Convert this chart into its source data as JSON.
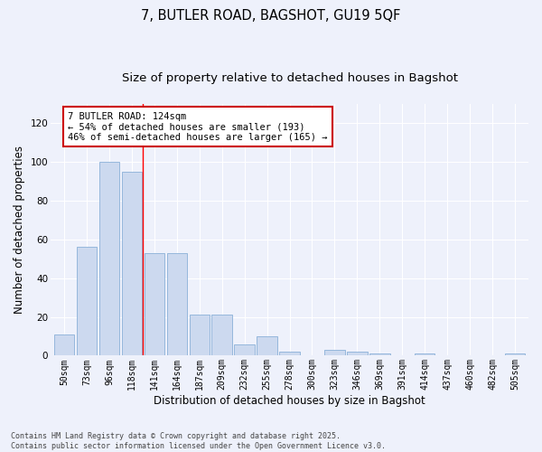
{
  "title": "7, BUTLER ROAD, BAGSHOT, GU19 5QF",
  "subtitle": "Size of property relative to detached houses in Bagshot",
  "xlabel": "Distribution of detached houses by size in Bagshot",
  "ylabel": "Number of detached properties",
  "categories": [
    "50sqm",
    "73sqm",
    "96sqm",
    "118sqm",
    "141sqm",
    "164sqm",
    "187sqm",
    "209sqm",
    "232sqm",
    "255sqm",
    "278sqm",
    "300sqm",
    "323sqm",
    "346sqm",
    "369sqm",
    "391sqm",
    "414sqm",
    "437sqm",
    "460sqm",
    "482sqm",
    "505sqm"
  ],
  "values": [
    11,
    56,
    100,
    95,
    53,
    53,
    21,
    21,
    6,
    10,
    2,
    0,
    3,
    2,
    1,
    0,
    1,
    0,
    0,
    0,
    1
  ],
  "bar_color": "#ccd9ef",
  "bar_edge_color": "#8ab0d8",
  "ylim": [
    0,
    130
  ],
  "yticks": [
    0,
    20,
    40,
    60,
    80,
    100,
    120
  ],
  "annotation_text": "7 BUTLER ROAD: 124sqm\n← 54% of detached houses are smaller (193)\n46% of semi-detached houses are larger (165) →",
  "vline_x_index": 3.5,
  "annotation_box_color": "#ffffff",
  "annotation_box_edge_color": "#cc0000",
  "footer_text": "Contains HM Land Registry data © Crown copyright and database right 2025.\nContains public sector information licensed under the Open Government Licence v3.0.",
  "background_color": "#eef1fb",
  "grid_color": "#ffffff",
  "title_fontsize": 10.5,
  "subtitle_fontsize": 9.5,
  "tick_fontsize": 7,
  "ylabel_fontsize": 8.5,
  "xlabel_fontsize": 8.5,
  "annotation_fontsize": 7.5,
  "footer_fontsize": 6.0
}
